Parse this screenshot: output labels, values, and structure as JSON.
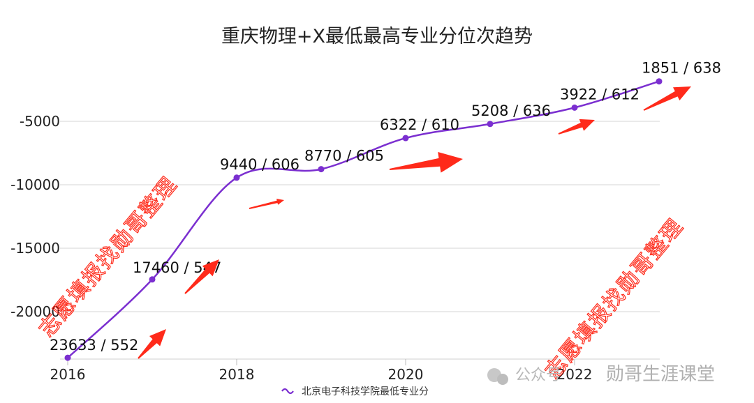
{
  "chart_data": {
    "type": "line",
    "title": "重庆物理+X最低最高专业分位次趋势",
    "xlabel": "",
    "ylabel": "",
    "x": [
      2016,
      2017,
      2018,
      2019,
      2020,
      2021,
      2022,
      2023
    ],
    "x_tick_labels": [
      "2016",
      "2018",
      "2020",
      "2022"
    ],
    "y_tick_labels": [
      "-5000",
      "-10000",
      "-15000",
      "-20000"
    ],
    "ylim": [
      -24000,
      0
    ],
    "grid": "horizontal",
    "legend_position": "bottom",
    "series": [
      {
        "name": "北京电子科技学院最低专业分",
        "color": "#7b2fd0",
        "values": [
          -23633,
          -17460,
          -9440,
          -8770,
          -6322,
          -5208,
          -3922,
          -1851
        ],
        "data_labels": [
          "23633 / 552",
          "17460 / 547",
          "9440 / 606",
          "8770 / 605",
          "6322 / 610",
          "5208 / 636",
          "3922 / 612",
          "1851 / 638"
        ]
      }
    ]
  },
  "watermarks": {
    "text_left": "志愿填报找勋哥整理",
    "text_right": "志愿填报找勋哥整理",
    "account_prefix": "公众号",
    "account_name": "勋哥生涯课堂",
    "color": "#ff2a1a"
  }
}
